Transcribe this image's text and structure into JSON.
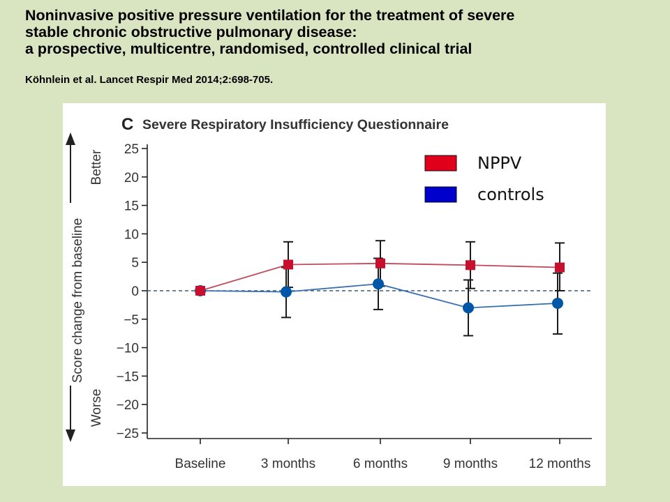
{
  "slide": {
    "title_lines": [
      "Noninvasive positive pressure ventilation for the treatment of severe",
      "stable chronic obstructive pulmonary disease:",
      "a prospective, multicentre, randomised, controlled clinical trial"
    ],
    "citation": "Köhnlein et al. Lancet Respir Med 2014;2:698-705."
  },
  "chart_data": {
    "type": "line",
    "panel_letter": "C",
    "title": "Severe Respiratory Insufficiency Questionnaire",
    "ylabel": "Score change from baseline",
    "better_label": "Better",
    "worse_label": "Worse",
    "categories": [
      "Baseline",
      "3 months",
      "6 months",
      "9 months",
      "12 months"
    ],
    "ylim": [
      -25,
      25
    ],
    "yticks": [
      25,
      20,
      15,
      10,
      5,
      0,
      -5,
      -10,
      -15,
      -20,
      -25
    ],
    "ytick_labels": [
      "25",
      "20",
      "15",
      "10",
      "5",
      "0",
      "−5",
      "−10",
      "−15",
      "−20",
      "−25"
    ],
    "reference_line": 0,
    "legend_position": "top-right",
    "series": [
      {
        "name": "NPPV",
        "color": "#c8102e",
        "line_color": "#c04a5a",
        "marker": "square",
        "values": [
          0,
          4.6,
          4.8,
          4.5,
          4.1
        ],
        "error_low": [
          null,
          0.6,
          0.8,
          0.4,
          0.0
        ],
        "error_high": [
          null,
          8.6,
          8.8,
          8.6,
          8.4
        ]
      },
      {
        "name": "controls",
        "color": "#0057a8",
        "line_color": "#3a6fb0",
        "marker": "circle",
        "values": [
          0,
          -0.2,
          1.2,
          -3.0,
          -2.2
        ],
        "error_low": [
          null,
          -4.7,
          -3.3,
          -7.9,
          -7.6
        ],
        "error_high": [
          null,
          4.1,
          5.7,
          1.9,
          3.1
        ]
      }
    ],
    "legend": [
      {
        "label": "NPPV",
        "color": "#e0001b"
      },
      {
        "label": "controls",
        "color": "#0000cc"
      }
    ]
  }
}
